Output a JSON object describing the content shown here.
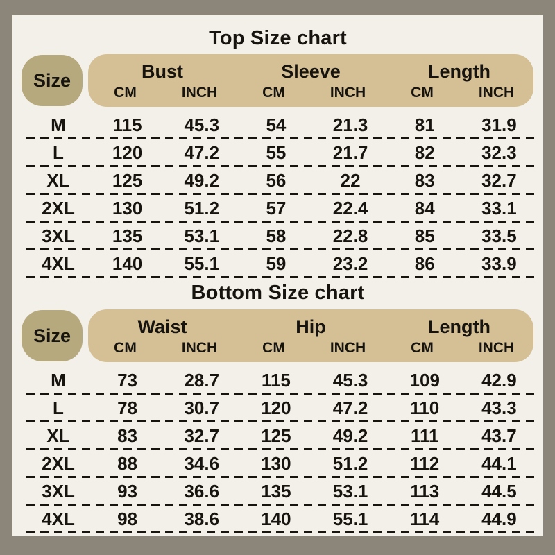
{
  "colors": {
    "frame": "#8b8679",
    "card": "#f3f0e9",
    "pill": "#b6a97e",
    "band": "#d5c096",
    "ink": "#17140f"
  },
  "chart_data": [
    {
      "type": "table",
      "title": "Top Size chart",
      "corner_label": "Size",
      "groups": [
        "Bust",
        "Sleeve",
        "Length"
      ],
      "units": [
        "CM",
        "INCH",
        "CM",
        "INCH",
        "CM",
        "INCH"
      ],
      "rows": [
        {
          "size": "M",
          "values": [
            "115",
            "45.3",
            "54",
            "21.3",
            "81",
            "31.9"
          ]
        },
        {
          "size": "L",
          "values": [
            "120",
            "47.2",
            "55",
            "21.7",
            "82",
            "32.3"
          ]
        },
        {
          "size": "XL",
          "values": [
            "125",
            "49.2",
            "56",
            "22",
            "83",
            "32.7"
          ]
        },
        {
          "size": "2XL",
          "values": [
            "130",
            "51.2",
            "57",
            "22.4",
            "84",
            "33.1"
          ]
        },
        {
          "size": "3XL",
          "values": [
            "135",
            "53.1",
            "58",
            "22.8",
            "85",
            "33.5"
          ]
        },
        {
          "size": "4XL",
          "values": [
            "140",
            "55.1",
            "59",
            "23.2",
            "86",
            "33.9"
          ]
        }
      ]
    },
    {
      "type": "table",
      "title": "Bottom Size chart",
      "corner_label": "Size",
      "groups": [
        "Waist",
        "Hip",
        "Length"
      ],
      "units": [
        "CM",
        "INCH",
        "CM",
        "INCH",
        "CM",
        "INCH"
      ],
      "rows": [
        {
          "size": "M",
          "values": [
            "73",
            "28.7",
            "115",
            "45.3",
            "109",
            "42.9"
          ]
        },
        {
          "size": "L",
          "values": [
            "78",
            "30.7",
            "120",
            "47.2",
            "110",
            "43.3"
          ]
        },
        {
          "size": "XL",
          "values": [
            "83",
            "32.7",
            "125",
            "49.2",
            "111",
            "43.7"
          ]
        },
        {
          "size": "2XL",
          "values": [
            "88",
            "34.6",
            "130",
            "51.2",
            "112",
            "44.1"
          ]
        },
        {
          "size": "3XL",
          "values": [
            "93",
            "36.6",
            "135",
            "53.1",
            "113",
            "44.5"
          ]
        },
        {
          "size": "4XL",
          "values": [
            "98",
            "38.6",
            "140",
            "55.1",
            "114",
            "44.9"
          ]
        }
      ]
    }
  ]
}
